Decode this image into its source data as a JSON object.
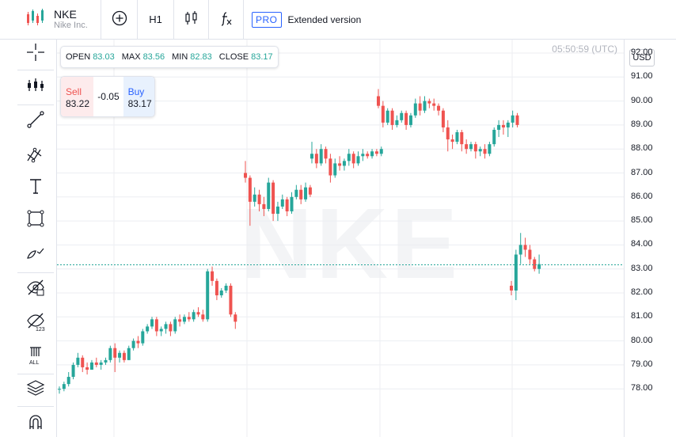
{
  "header": {
    "symbol": "NKE",
    "company": "Nike Inc.",
    "interval": "H1",
    "pro_badge": "PRO",
    "pro_text": "Extended version"
  },
  "legend": {
    "open_label": "OPEN",
    "open": "83.03",
    "max_label": "MAX",
    "max": "83.56",
    "min_label": "MIN",
    "min": "82.83",
    "close_label": "CLOSE",
    "close": "83.17"
  },
  "trade": {
    "sell_label": "Sell",
    "sell_price": "83.22",
    "spread": "-0.05",
    "buy_label": "Buy",
    "buy_price": "83.17"
  },
  "chart": {
    "timestamp": "05:50:59 (UTC)",
    "currency": "USD",
    "watermark": "NKE",
    "up_color": "#26a69a",
    "down_color": "#ef5350",
    "last_price": 83.17
  },
  "left_tools": [
    "crosshair-icon",
    "indicators-icon",
    "trendline-icon",
    "fib-icon",
    "text-icon",
    "rectangle-icon",
    "brush-icon",
    "hide-drawings-icon",
    "hide-labels-icon",
    "delete-all-icon",
    "layers-icon",
    "magnet-icon"
  ],
  "chart_data": {
    "type": "candlestick",
    "symbol": "NKE",
    "interval": "H1",
    "y_ticks": [
      "92.00",
      "91.00",
      "90.00",
      "89.00",
      "88.00",
      "87.00",
      "86.00",
      "85.00",
      "84.00",
      "83.00",
      "82.00",
      "81.00",
      "80.00",
      "79.00",
      "78.00"
    ],
    "ylim": [
      77.8,
      93.0
    ],
    "candles": [
      [
        78.0,
        78.1,
        77.8,
        78.0
      ],
      [
        78.0,
        78.3,
        77.9,
        78.2
      ],
      [
        78.2,
        78.7,
        78.1,
        78.5
      ],
      [
        78.5,
        79.1,
        78.4,
        79.0
      ],
      [
        79.0,
        79.5,
        78.9,
        79.3
      ],
      [
        79.3,
        79.4,
        78.7,
        78.9
      ],
      [
        78.9,
        79.1,
        78.6,
        78.8
      ],
      [
        78.8,
        79.2,
        78.8,
        79.1
      ],
      [
        79.1,
        79.3,
        78.9,
        79.0
      ],
      [
        79.0,
        79.2,
        78.8,
        79.1
      ],
      [
        79.1,
        79.3,
        79.0,
        79.2
      ],
      [
        79.2,
        79.8,
        79.1,
        79.7
      ],
      [
        79.7,
        79.9,
        78.7,
        79.3
      ],
      [
        79.3,
        79.6,
        79.1,
        79.5
      ],
      [
        79.5,
        79.6,
        79.1,
        79.2
      ],
      [
        79.2,
        79.8,
        79.2,
        79.7
      ],
      [
        79.7,
        80.1,
        79.6,
        80.0
      ],
      [
        80.0,
        80.2,
        79.7,
        79.9
      ],
      [
        79.9,
        80.5,
        79.8,
        80.4
      ],
      [
        80.4,
        80.7,
        80.3,
        80.6
      ],
      [
        80.6,
        81.0,
        80.5,
        80.9
      ],
      [
        80.9,
        81.0,
        80.2,
        80.4
      ],
      [
        80.4,
        80.6,
        80.2,
        80.5
      ],
      [
        80.5,
        80.8,
        80.3,
        80.7
      ],
      [
        80.7,
        80.8,
        80.2,
        80.4
      ],
      [
        80.4,
        81.0,
        80.3,
        80.9
      ],
      [
        80.9,
        81.1,
        80.6,
        80.8
      ],
      [
        80.8,
        81.1,
        80.7,
        81.0
      ],
      [
        81.0,
        81.2,
        80.8,
        80.9
      ],
      [
        80.9,
        81.3,
        80.8,
        81.2
      ],
      [
        81.2,
        81.4,
        81.0,
        81.1
      ],
      [
        81.1,
        81.3,
        80.8,
        80.9
      ],
      [
        80.9,
        83.0,
        80.8,
        82.9
      ],
      [
        82.9,
        83.1,
        82.3,
        82.5
      ],
      [
        82.5,
        82.6,
        81.7,
        81.9
      ],
      [
        81.9,
        82.2,
        81.8,
        82.1
      ],
      [
        82.1,
        82.4,
        82.0,
        82.3
      ],
      [
        82.3,
        82.4,
        81.0,
        81.1
      ],
      [
        81.1,
        81.2,
        80.5,
        80.8
      ],
      [
        87.0,
        87.5,
        86.6,
        86.8
      ],
      [
        86.8,
        86.9,
        84.8,
        85.8
      ],
      [
        85.8,
        86.4,
        85.6,
        86.1
      ],
      [
        86.1,
        86.3,
        85.4,
        85.7
      ],
      [
        85.7,
        86.0,
        85.2,
        85.5
      ],
      [
        85.5,
        86.8,
        85.4,
        86.6
      ],
      [
        86.6,
        86.7,
        85.0,
        85.3
      ],
      [
        85.3,
        85.8,
        85.0,
        85.6
      ],
      [
        85.6,
        86.1,
        85.5,
        85.9
      ],
      [
        85.9,
        86.0,
        85.2,
        85.4
      ],
      [
        85.4,
        86.2,
        85.3,
        86.0
      ],
      [
        86.0,
        86.5,
        85.9,
        86.3
      ],
      [
        86.3,
        86.5,
        85.7,
        85.9
      ],
      [
        85.9,
        86.6,
        85.8,
        86.4
      ],
      [
        86.4,
        86.5,
        86.0,
        86.1
      ],
      [
        87.6,
        88.3,
        87.4,
        87.8
      ],
      [
        87.8,
        88.0,
        87.2,
        87.4
      ],
      [
        87.4,
        88.2,
        87.3,
        88.0
      ],
      [
        88.0,
        88.1,
        87.4,
        87.6
      ],
      [
        87.6,
        87.8,
        86.6,
        86.9
      ],
      [
        86.9,
        87.6,
        86.8,
        87.4
      ],
      [
        87.4,
        87.7,
        87.1,
        87.3
      ],
      [
        87.3,
        87.6,
        87.1,
        87.5
      ],
      [
        87.5,
        88.0,
        87.3,
        87.8
      ],
      [
        87.8,
        87.9,
        87.2,
        87.4
      ],
      [
        87.4,
        87.9,
        87.3,
        87.7
      ],
      [
        87.7,
        88.0,
        87.5,
        87.8
      ],
      [
        87.8,
        87.9,
        87.6,
        87.7
      ],
      [
        87.7,
        88.0,
        87.6,
        87.9
      ],
      [
        87.9,
        88.0,
        87.7,
        87.8
      ],
      [
        87.8,
        88.1,
        87.7,
        88.0
      ],
      [
        90.2,
        90.5,
        89.7,
        89.8
      ],
      [
        89.8,
        90.0,
        88.9,
        89.1
      ],
      [
        89.1,
        89.7,
        89.0,
        89.6
      ],
      [
        89.6,
        89.7,
        88.8,
        89.0
      ],
      [
        89.0,
        89.4,
        88.9,
        89.2
      ],
      [
        89.2,
        89.6,
        89.1,
        89.5
      ],
      [
        89.5,
        89.6,
        88.8,
        89.0
      ],
      [
        89.0,
        89.5,
        88.9,
        89.4
      ],
      [
        89.4,
        90.1,
        89.3,
        89.9
      ],
      [
        89.9,
        90.2,
        89.4,
        89.6
      ],
      [
        89.6,
        90.2,
        89.5,
        90.0
      ],
      [
        90.0,
        90.1,
        89.7,
        89.9
      ],
      [
        89.9,
        90.1,
        89.6,
        89.8
      ],
      [
        89.8,
        89.9,
        89.4,
        89.6
      ],
      [
        89.6,
        89.7,
        88.7,
        88.9
      ],
      [
        88.9,
        89.2,
        87.9,
        88.4
      ],
      [
        88.4,
        88.6,
        88.0,
        88.3
      ],
      [
        88.3,
        88.8,
        88.2,
        88.7
      ],
      [
        88.7,
        88.8,
        87.9,
        88.2
      ],
      [
        88.2,
        88.4,
        87.8,
        88.0
      ],
      [
        88.0,
        88.3,
        87.9,
        88.2
      ],
      [
        88.2,
        88.3,
        87.6,
        87.9
      ],
      [
        87.9,
        88.1,
        87.7,
        88.0
      ],
      [
        88.0,
        88.2,
        87.6,
        87.8
      ],
      [
        87.8,
        88.3,
        87.7,
        88.2
      ],
      [
        88.2,
        88.9,
        88.1,
        88.8
      ],
      [
        88.8,
        89.2,
        88.5,
        89.0
      ],
      [
        89.0,
        89.2,
        88.6,
        88.9
      ],
      [
        88.9,
        89.2,
        88.5,
        89.1
      ],
      [
        89.1,
        89.6,
        88.9,
        89.4
      ],
      [
        89.4,
        89.5,
        88.9,
        89.0
      ],
      [
        82.3,
        82.5,
        81.9,
        82.1
      ],
      [
        82.1,
        83.8,
        81.7,
        83.6
      ],
      [
        83.6,
        84.5,
        83.2,
        84.0
      ],
      [
        84.0,
        84.3,
        83.5,
        83.8
      ],
      [
        83.8,
        84.0,
        83.2,
        83.4
      ],
      [
        83.4,
        83.5,
        82.9,
        83.0
      ],
      [
        83.0,
        83.6,
        82.8,
        83.2
      ]
    ]
  }
}
